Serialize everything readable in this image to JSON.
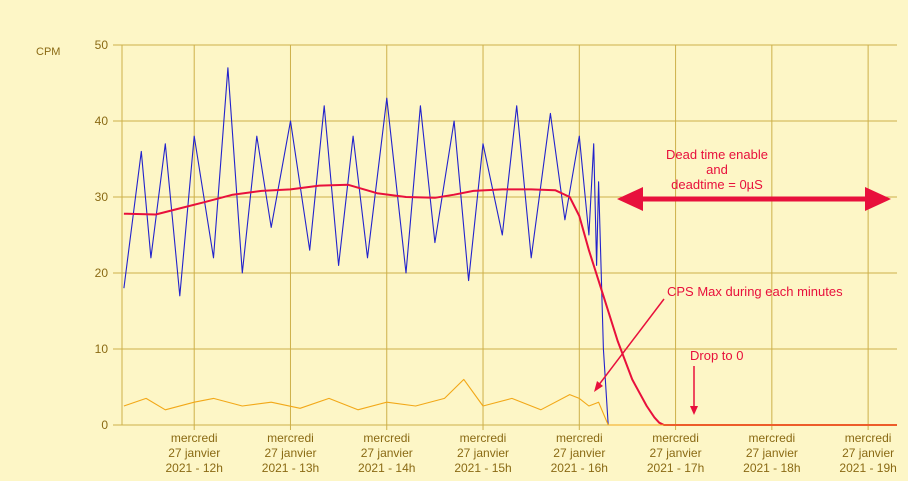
{
  "chart_data": {
    "type": "line",
    "ylabel": "CPM",
    "ylim": [
      0,
      50
    ],
    "yticks": [
      0,
      10,
      20,
      30,
      40,
      50
    ],
    "xlim_hours": [
      11.25,
      19.3
    ],
    "xticks": [
      {
        "hour": 12,
        "lines": [
          "mercredi",
          "27 janvier",
          "2021 - 12h"
        ]
      },
      {
        "hour": 13,
        "lines": [
          "mercredi",
          "27 janvier",
          "2021 - 13h"
        ]
      },
      {
        "hour": 14,
        "lines": [
          "mercredi",
          "27 janvier",
          "2021 - 14h"
        ]
      },
      {
        "hour": 15,
        "lines": [
          "mercredi",
          "27 janvier",
          "2021 - 15h"
        ]
      },
      {
        "hour": 16,
        "lines": [
          "mercredi",
          "27 janvier",
          "2021 - 16h"
        ]
      },
      {
        "hour": 17,
        "lines": [
          "mercredi",
          "27 janvier",
          "2021 - 17h"
        ]
      },
      {
        "hour": 18,
        "lines": [
          "mercredi",
          "27 janvier",
          "2021 - 18h"
        ]
      },
      {
        "hour": 19,
        "lines": [
          "mercredi",
          "27 janvier",
          "2021 - 19h"
        ]
      }
    ],
    "grid": true,
    "series": [
      {
        "color": "#2222cc",
        "x": [
          11.27,
          11.45,
          11.55,
          11.7,
          11.85,
          12.0,
          12.2,
          12.35,
          12.5,
          12.65,
          12.8,
          13.0,
          13.2,
          13.35,
          13.5,
          13.65,
          13.8,
          14.0,
          14.2,
          14.35,
          14.5,
          14.7,
          14.85,
          15.0,
          15.2,
          15.35,
          15.5,
          15.7,
          15.85,
          16.0,
          16.1,
          16.15,
          16.18,
          16.2,
          16.25,
          16.3
        ],
        "y": [
          18,
          36,
          22,
          37,
          17,
          38,
          22,
          47,
          20,
          38,
          26,
          40,
          23,
          42,
          21,
          38,
          22,
          43,
          20,
          42,
          24,
          40,
          19,
          37,
          25,
          42,
          22,
          41,
          27,
          38,
          25,
          37,
          21,
          32,
          10,
          0
        ]
      },
      {
        "color": "#e8103c",
        "x": [
          11.27,
          11.6,
          11.85,
          12.1,
          12.4,
          12.7,
          13.0,
          13.3,
          13.6,
          13.9,
          14.2,
          14.5,
          14.7,
          14.9,
          15.2,
          15.5,
          15.75,
          15.9,
          16.0,
          16.1,
          16.25,
          16.4,
          16.55,
          16.7,
          16.78,
          16.83,
          16.88,
          19.3
        ],
        "y": [
          27.8,
          27.7,
          28.5,
          29.3,
          30.3,
          30.8,
          31.0,
          31.5,
          31.6,
          30.5,
          30.0,
          29.9,
          30.3,
          30.8,
          31.0,
          31.0,
          30.9,
          30.0,
          27.5,
          23.0,
          17.0,
          11.0,
          6.0,
          2.5,
          1.0,
          0.3,
          0,
          0
        ]
      },
      {
        "color": "#f2a818",
        "x": [
          11.27,
          11.5,
          11.7,
          12.0,
          12.2,
          12.5,
          12.8,
          13.1,
          13.4,
          13.7,
          14.0,
          14.3,
          14.6,
          14.8,
          15.0,
          15.3,
          15.6,
          15.9,
          16.0,
          16.1,
          16.2,
          16.3,
          19.3
        ],
        "y": [
          2.5,
          3.5,
          2.0,
          3.0,
          3.5,
          2.5,
          3.0,
          2.2,
          3.5,
          2.0,
          3.0,
          2.5,
          3.5,
          6.0,
          2.5,
          3.5,
          2.0,
          4.0,
          3.5,
          2.5,
          3.0,
          0,
          0
        ]
      }
    ],
    "annotations": [
      {
        "lines": [
          "Dead time enable",
          "and",
          "deadtime = 0µS"
        ]
      },
      {
        "lines": [
          "CPS Max during each minutes"
        ]
      },
      {
        "lines": [
          "Drop to 0"
        ]
      }
    ]
  }
}
